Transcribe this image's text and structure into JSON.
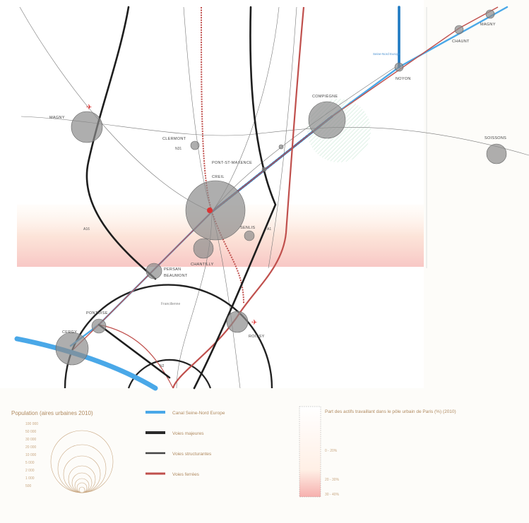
{
  "map": {
    "cities": [
      {
        "id": "magny",
        "label": "MAGNY"
      },
      {
        "id": "chaunt",
        "label": "CHAUNT"
      },
      {
        "id": "compiegne",
        "label": "COMPIÈGNE"
      },
      {
        "id": "noyon",
        "label": "NOYON"
      },
      {
        "id": "soissons",
        "label": "SOISSONS"
      },
      {
        "id": "clermont",
        "label": "CLERMONT"
      },
      {
        "id": "creil",
        "label": "CREIL"
      },
      {
        "id": "pont",
        "label": "PONT-ST-MAXENCE"
      },
      {
        "id": "senlis",
        "label": "SENLIS"
      },
      {
        "id": "chantilly",
        "label": "CHANTILLY"
      },
      {
        "id": "persan",
        "label": "PERSAN"
      },
      {
        "id": "beaumont",
        "label": "BEAUMONT"
      },
      {
        "id": "pontoise",
        "label": "PONTOISE"
      },
      {
        "id": "cergy",
        "label": "CERGY"
      },
      {
        "id": "roissy",
        "label": "ROISSY"
      },
      {
        "id": "magny2",
        "label": "MAGNY"
      }
    ],
    "road_labels": {
      "a16": "A16",
      "a1": "A1",
      "n31": "N31",
      "n2": "N2"
    },
    "ring_label": "Francilienne",
    "seine_label": "Seine-Nord Europe"
  },
  "legend": {
    "population_title": "Population (aires urbaines 2010)",
    "population_scale": [
      "100 000",
      "50 000",
      "30 000",
      "20 000",
      "10 000",
      "5 000",
      "2 000",
      "1 000",
      "500"
    ],
    "lines": [
      {
        "label": "Canal Seine-Nord Europe",
        "color": "#4aa8e8"
      },
      {
        "label": "Voies majeures",
        "color": "#2a2a2a"
      },
      {
        "label": "Voies structurantes",
        "color": "#444444"
      },
      {
        "label": "Voies ferrées",
        "color": "#c0504d"
      }
    ],
    "gradient_title": "Part des actifs travaillant dans le pôle urbain de Paris (%) (2010)",
    "gradient_ticks": [
      "0 - 20%",
      "20 - 30%",
      "30 - 40%"
    ]
  }
}
